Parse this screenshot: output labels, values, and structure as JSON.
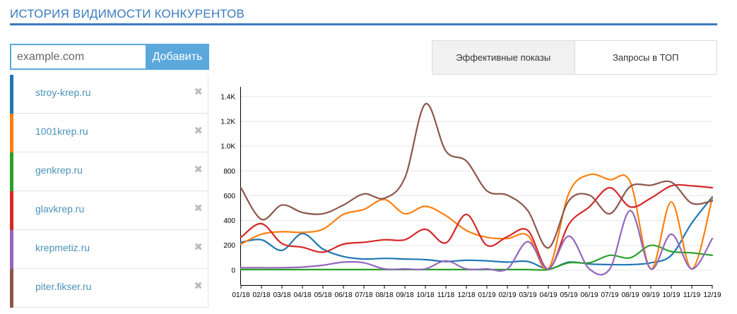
{
  "header": {
    "title": "ИСТОРИЯ ВИДИМОСТИ КОНКУРЕНТОВ"
  },
  "add_form": {
    "placeholder": "example.com",
    "button_label": "Добавить"
  },
  "tabs": [
    {
      "label": "Эффективные показы",
      "active": true
    },
    {
      "label": "Запросы в ТОП",
      "active": false
    }
  ],
  "remove_glyph": "✖",
  "competitors": [
    {
      "name": "stroy-krep.ru",
      "color": "#1f77b4"
    },
    {
      "name": "1001krep.ru",
      "color": "#ff7f0e"
    },
    {
      "name": "genkrep.ru",
      "color": "#2ca02c"
    },
    {
      "name": "glavkrep.ru",
      "color": "#d62728"
    },
    {
      "name": "krepmetiz.ru",
      "color": "#9467bd"
    },
    {
      "name": "piter.fikser.ru",
      "color": "#8c564b"
    }
  ],
  "chart_data": {
    "type": "line",
    "categories": [
      "01/18",
      "02/18",
      "03/18",
      "04/18",
      "05/18",
      "06/18",
      "07/18",
      "08/18",
      "09/18",
      "10/18",
      "11/18",
      "12/18",
      "01/19",
      "02/19",
      "03/19",
      "04/19",
      "05/19",
      "06/19",
      "07/19",
      "08/19",
      "09/19",
      "10/19",
      "11/19",
      "12/19"
    ],
    "y_ticks": [
      0,
      200,
      400,
      600,
      800,
      1000,
      1200,
      1400
    ],
    "y_tick_labels": [
      "0",
      "200",
      "400",
      "600",
      "800",
      "1.0K",
      "1.2K",
      "1.4K"
    ],
    "ylim": [
      -120,
      1450
    ],
    "grid": true,
    "series": [
      {
        "name": "stroy-krep.ru",
        "color": "#1f77b4",
        "values": [
          225,
          245,
          160,
          295,
          170,
          110,
          90,
          95,
          90,
          85,
          70,
          80,
          75,
          65,
          70,
          10,
          65,
          50,
          45,
          45,
          60,
          120,
          380,
          590
        ]
      },
      {
        "name": "1001krep.ru",
        "color": "#ff7f0e",
        "values": [
          210,
          290,
          310,
          305,
          330,
          450,
          490,
          570,
          455,
          515,
          440,
          320,
          265,
          255,
          280,
          10,
          620,
          770,
          730,
          710,
          10,
          550,
          10,
          580
        ]
      },
      {
        "name": "genkrep.ru",
        "color": "#2ca02c",
        "values": [
          5,
          5,
          5,
          5,
          5,
          5,
          5,
          5,
          5,
          5,
          5,
          5,
          5,
          5,
          5,
          5,
          60,
          60,
          120,
          100,
          200,
          150,
          140,
          120
        ]
      },
      {
        "name": "glavkrep.ru",
        "color": "#d62728",
        "values": [
          265,
          375,
          215,
          185,
          145,
          210,
          225,
          245,
          245,
          330,
          220,
          450,
          200,
          270,
          320,
          10,
          370,
          510,
          665,
          510,
          580,
          680,
          680,
          665
        ]
      },
      {
        "name": "krepmetiz.ru",
        "color": "#9467bd",
        "values": [
          20,
          20,
          20,
          25,
          40,
          65,
          60,
          10,
          10,
          10,
          75,
          10,
          10,
          10,
          230,
          10,
          275,
          10,
          10,
          480,
          10,
          290,
          10,
          255
        ]
      },
      {
        "name": "piter.fikser.ru",
        "color": "#8c564b",
        "values": [
          665,
          410,
          525,
          465,
          455,
          525,
          615,
          580,
          745,
          1340,
          960,
          880,
          640,
          605,
          480,
          180,
          560,
          605,
          455,
          675,
          685,
          710,
          540,
          560
        ]
      }
    ]
  }
}
